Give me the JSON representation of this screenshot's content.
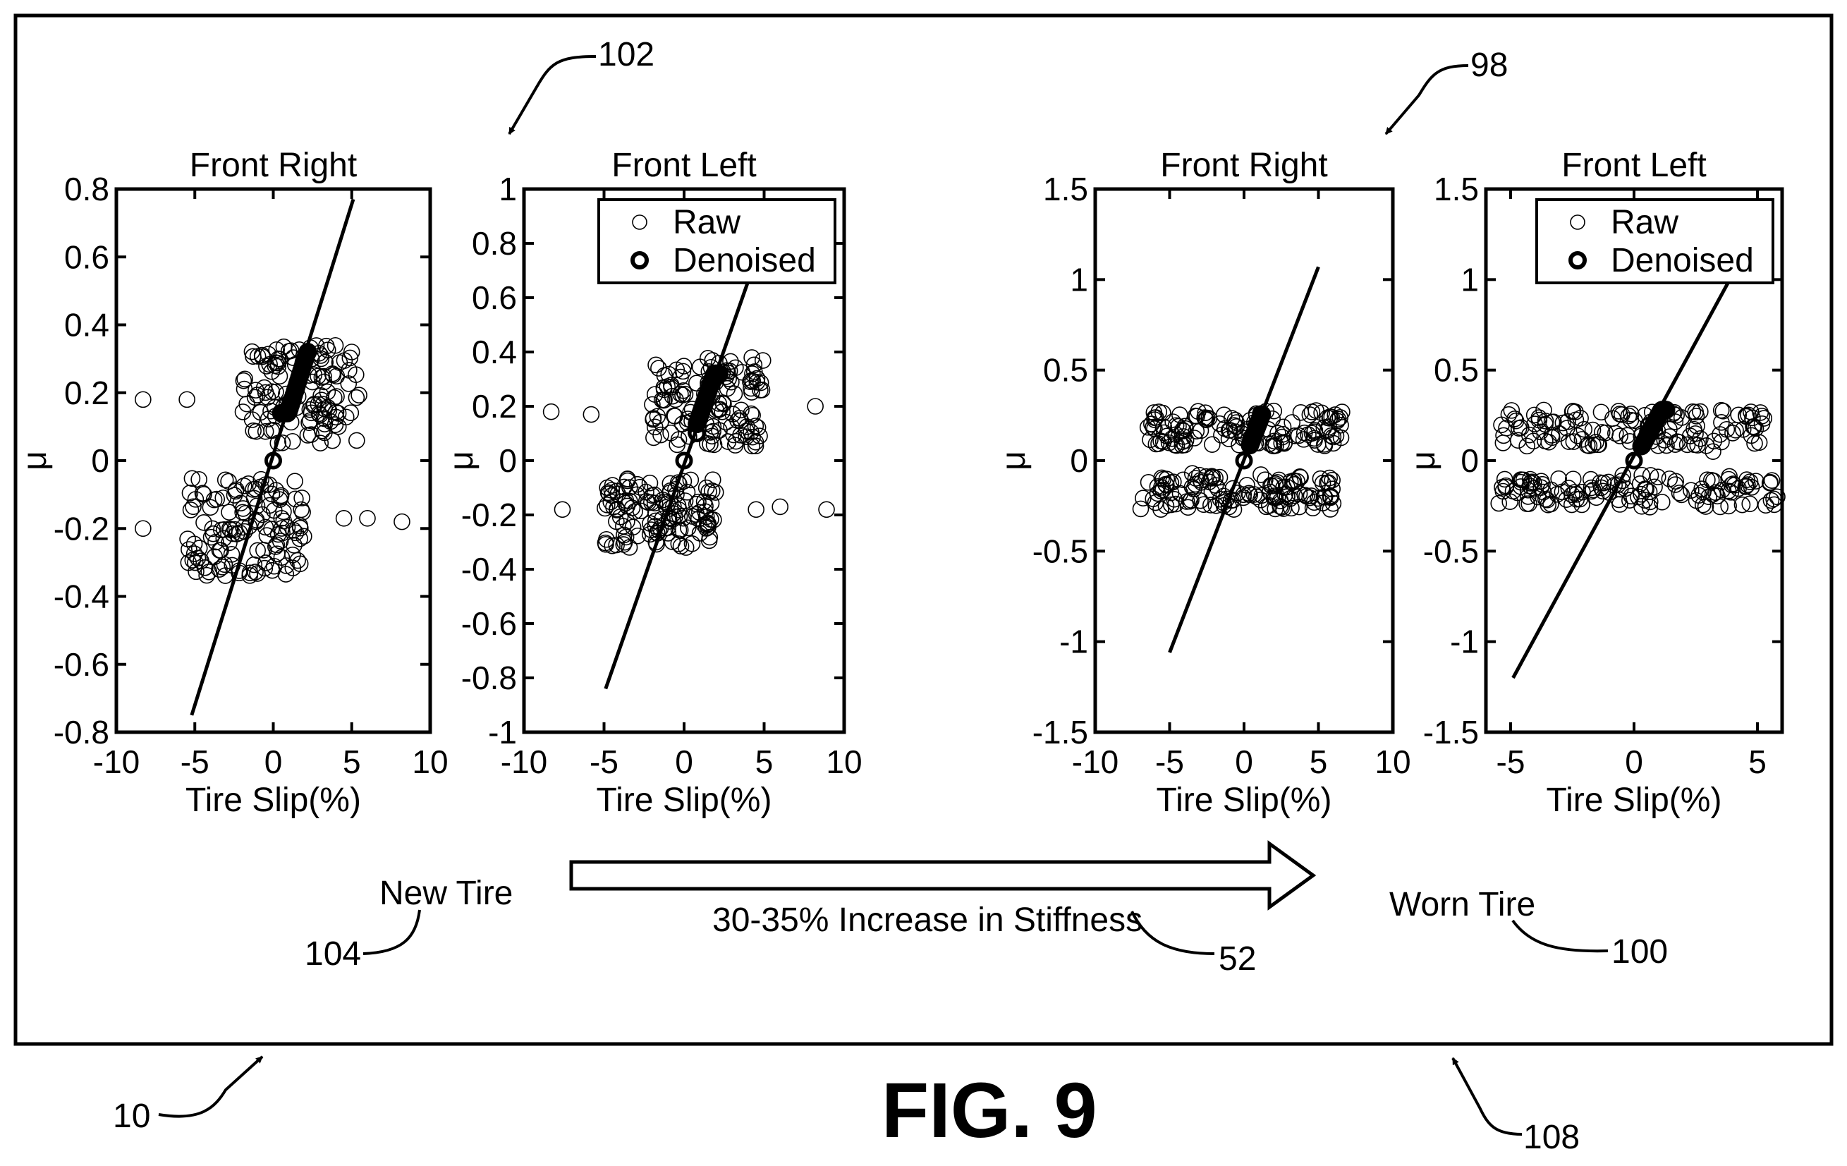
{
  "figure": {
    "label": "FIG. 9",
    "refs": {
      "outer": "10",
      "new_group": "102",
      "worn_group": "98",
      "new_tire": "104",
      "worn_tire": "100",
      "arrow": "52",
      "frame": "108"
    },
    "new_tire_label": "New Tire",
    "worn_tire_label": "Worn Tire",
    "arrow_label": "30-35% Increase in Stiffness"
  },
  "chart_data": [
    {
      "type": "scatter",
      "title": "Front Right",
      "xlabel": "Tire Slip(%)",
      "ylabel": "μ",
      "xlim": [
        -10,
        10
      ],
      "ylim": [
        -0.8,
        0.8
      ],
      "xticks": [
        -10,
        -5,
        0,
        5,
        10
      ],
      "yticks": [
        -0.8,
        -0.6,
        -0.4,
        -0.2,
        0,
        0.2,
        0.4,
        0.6,
        0.8
      ],
      "tick_labels_x": [
        "-10",
        "-5",
        "0",
        "5",
        "10"
      ],
      "tick_labels_y": [
        "-0.8",
        "-0.6",
        "-0.4",
        "-0.2",
        "0",
        "0.2",
        "0.4",
        "0.6",
        "0.8"
      ],
      "legend": null,
      "fit_line": {
        "x": [
          -5.2,
          5.1
        ],
        "y": [
          -0.75,
          0.77
        ]
      },
      "denoised": {
        "x_range": [
          0.5,
          2.2
        ],
        "y_range": [
          0.14,
          0.32
        ],
        "origin": [
          0,
          0
        ]
      },
      "raw": {
        "clusters": [
          {
            "x_range": [
              -2.0,
              5.5
            ],
            "y_range": [
              0.05,
              0.34
            ]
          },
          {
            "x_range": [
              -5.5,
              2.0
            ],
            "y_range": [
              -0.34,
              -0.05
            ]
          }
        ],
        "outliers": [
          [
            -8.3,
            0.18
          ],
          [
            -5.5,
            0.18
          ],
          [
            -8.3,
            -0.2
          ],
          [
            4.5,
            -0.17
          ],
          [
            6.0,
            -0.17
          ],
          [
            8.2,
            -0.18
          ]
        ]
      }
    },
    {
      "type": "scatter",
      "title": "Front Left",
      "xlabel": "Tire Slip(%)",
      "ylabel": "μ",
      "xlim": [
        -10,
        10
      ],
      "ylim": [
        -1,
        1
      ],
      "xticks": [
        -10,
        -5,
        0,
        5,
        10
      ],
      "yticks": [
        -1,
        -0.8,
        -0.6,
        -0.4,
        -0.2,
        0,
        0.2,
        0.4,
        0.6,
        0.8,
        1
      ],
      "tick_labels_x": [
        "-10",
        "-5",
        "0",
        "5",
        "10"
      ],
      "tick_labels_y": [
        "-1",
        "-0.8",
        "-0.6",
        "-0.4",
        "-0.2",
        "0",
        "0.2",
        "0.4",
        "0.6",
        "0.8",
        "1"
      ],
      "legend": {
        "position": "top-right",
        "entries": [
          "Raw",
          "Denoised"
        ]
      },
      "fit_line": {
        "x": [
          -4.9,
          4.0
        ],
        "y": [
          -0.84,
          0.66
        ]
      },
      "denoised": {
        "x_range": [
          0.8,
          2.2
        ],
        "y_range": [
          0.12,
          0.32
        ],
        "origin": [
          0,
          0
        ],
        "extra": [
          [
            0.8,
            0.1
          ]
        ]
      },
      "raw": {
        "clusters": [
          {
            "x_range": [
              -2.0,
              5.0
            ],
            "y_range": [
              0.05,
              0.38
            ]
          },
          {
            "x_range": [
              -5.0,
              2.0
            ],
            "y_range": [
              -0.32,
              -0.06
            ]
          }
        ],
        "outliers": [
          [
            -8.3,
            0.18
          ],
          [
            -5.8,
            0.17
          ],
          [
            -7.6,
            -0.18
          ],
          [
            4.5,
            -0.18
          ],
          [
            6.0,
            -0.17
          ],
          [
            8.2,
            0.2
          ],
          [
            8.9,
            -0.18
          ]
        ]
      }
    },
    {
      "type": "scatter",
      "title": "Front Right",
      "xlabel": "Tire Slip(%)",
      "ylabel": "μ",
      "xlim": [
        -10,
        10
      ],
      "ylim": [
        -1.5,
        1.5
      ],
      "xticks": [
        -10,
        -5,
        0,
        5,
        10
      ],
      "yticks": [
        -1.5,
        -1,
        -0.5,
        0,
        0.5,
        1,
        1.5
      ],
      "tick_labels_x": [
        "-10",
        "-5",
        "0",
        "5",
        "10"
      ],
      "tick_labels_y": [
        "-1.5",
        "-1",
        "-0.5",
        "0",
        "0.5",
        "1",
        "1.5"
      ],
      "legend": null,
      "fit_line": {
        "x": [
          -5.0,
          5.0
        ],
        "y": [
          -1.06,
          1.07
        ]
      },
      "denoised": {
        "x_range": [
          0.4,
          1.2
        ],
        "y_range": [
          0.08,
          0.28
        ],
        "origin": [
          0,
          0
        ]
      },
      "raw": {
        "clusters": [
          {
            "x_range": [
              -6.5,
              7.0
            ],
            "y_range": [
              0.08,
              0.28
            ]
          },
          {
            "x_range": [
              -7.0,
              6.0
            ],
            "y_range": [
              -0.27,
              -0.07
            ]
          }
        ],
        "outliers": []
      }
    },
    {
      "type": "scatter",
      "title": "Front Left",
      "xlabel": "Tire Slip(%)",
      "ylabel": "μ",
      "xlim": [
        -6,
        6
      ],
      "ylim": [
        -1.5,
        1.5
      ],
      "xticks": [
        -5,
        0,
        5
      ],
      "yticks": [
        -1.5,
        -1,
        -0.5,
        0,
        0.5,
        1,
        1.5
      ],
      "tick_labels_x": [
        "-5",
        "0",
        "5"
      ],
      "tick_labels_y": [
        "-1.5",
        "-1",
        "-0.5",
        "0",
        "0.5",
        "1",
        "1.5"
      ],
      "legend": {
        "position": "top-right",
        "entries": [
          "Raw",
          "Denoised"
        ]
      },
      "fit_line": {
        "x": [
          -4.9,
          3.8
        ],
        "y": [
          -1.2,
          0.98
        ]
      },
      "denoised": {
        "x_range": [
          0.3,
          1.3
        ],
        "y_range": [
          0.08,
          0.28
        ],
        "origin": [
          0,
          0
        ]
      },
      "raw": {
        "clusters": [
          {
            "x_range": [
              -5.5,
              5.5
            ],
            "y_range": [
              0.08,
              0.28
            ]
          },
          {
            "x_range": [
              -5.5,
              5.8
            ],
            "y_range": [
              -0.26,
              -0.08
            ]
          }
        ],
        "outliers": [
          [
            3.2,
            0.05
          ],
          [
            5.8,
            -0.2
          ]
        ]
      }
    }
  ]
}
